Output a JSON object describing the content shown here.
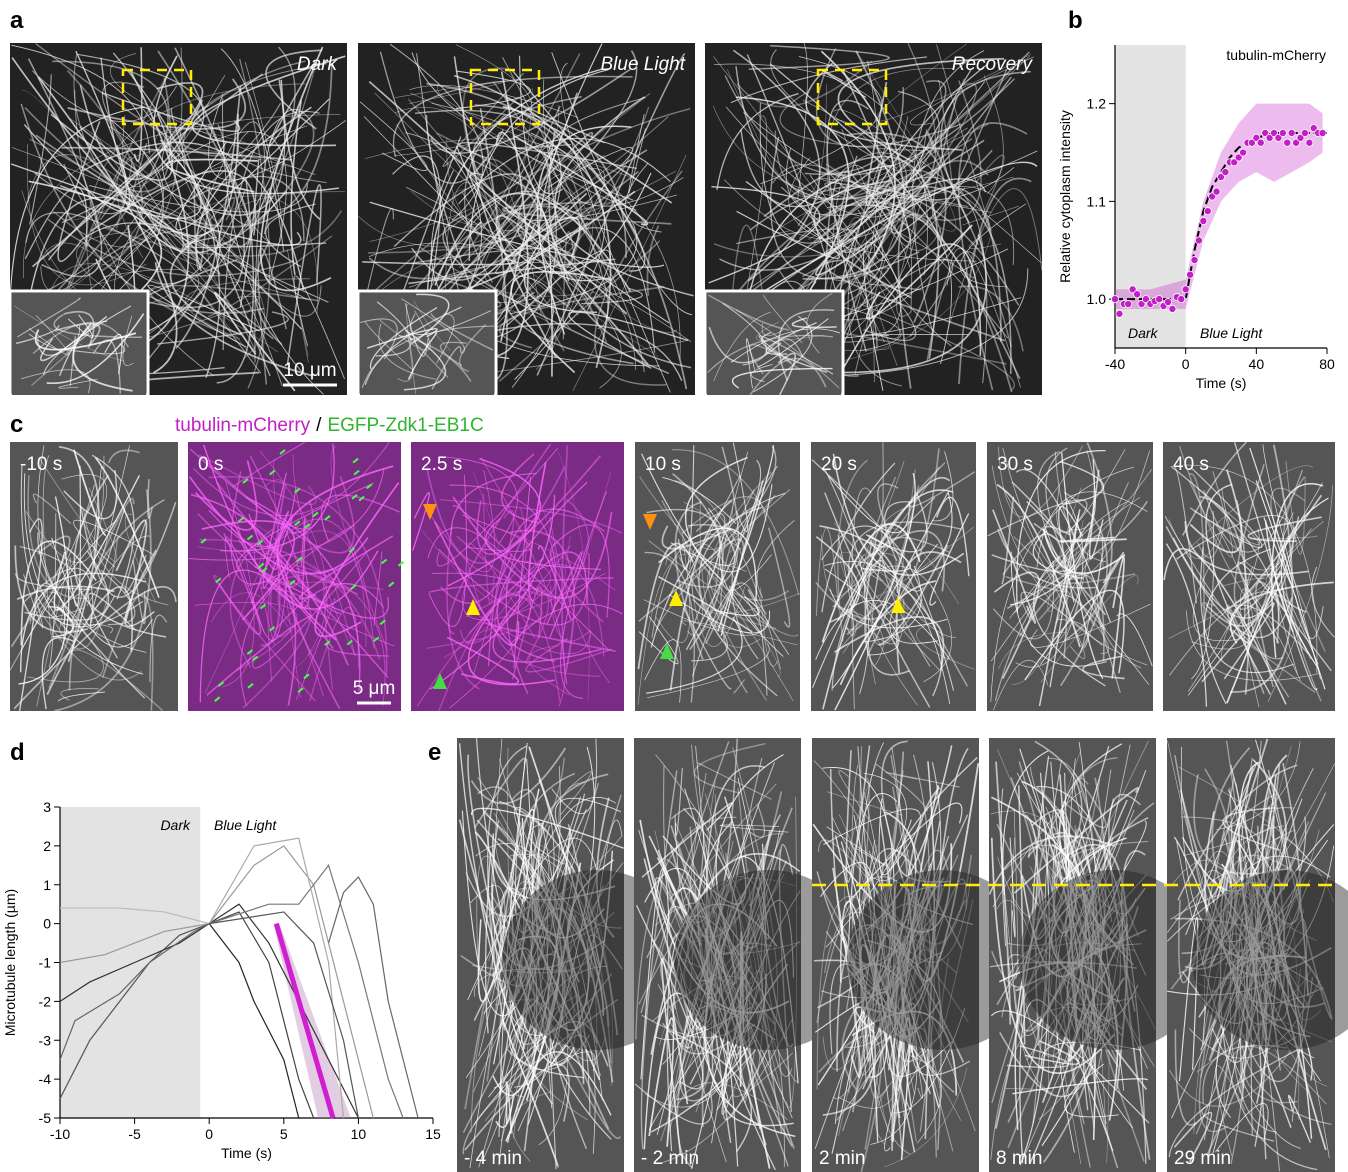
{
  "panel_labels": [
    "a",
    "b",
    "c",
    "d",
    "e"
  ],
  "panel_a": {
    "images": [
      "Dark",
      "Blue Light",
      "Recovery"
    ],
    "scale_bar": "10 μm"
  },
  "panel_c": {
    "title": [
      "tubulin-mCherry",
      "/",
      "EGFP-Zdk1-EB1C"
    ],
    "frames": [
      "-10 s",
      "0 s",
      "2.5 s",
      "10 s",
      "20 s",
      "30 s",
      "40 s"
    ],
    "scale_bar": "5 μm"
  },
  "panel_e": {
    "frames": [
      "- 4 min",
      "- 2 min",
      "2 min",
      "8 min",
      "29 min"
    ]
  },
  "chart_data": [
    {
      "type": "scatter",
      "x_label": "Time (s)",
      "y_label": "Relative cytoplasm intensity",
      "annotations": [
        "Dark",
        "Blue Light"
      ],
      "xlim": [
        -40,
        80
      ],
      "xticks": [
        -40,
        0,
        40,
        80
      ],
      "ylim": [
        0.95,
        1.26
      ],
      "yticks": [
        {
          "value": 1,
          "label": "1.0"
        },
        {
          "value": 1.1,
          "label": "1.1"
        },
        {
          "value": 1.2,
          "label": "1.2"
        }
      ],
      "shaded_x": [
        -40,
        0
      ],
      "series": [
        {
          "name": "tubulin-mCherry",
          "color": "#c21fc6",
          "x": [
            -40,
            -37.5,
            -35,
            -32.5,
            -30,
            -27.5,
            -25,
            -22.5,
            -20,
            -17.5,
            -15,
            -12.5,
            -10,
            -7.5,
            -5,
            -2.5,
            0,
            2.5,
            5,
            7.5,
            10,
            12.5,
            15,
            17.5,
            20,
            22.5,
            25,
            27.5,
            30,
            32.5,
            35,
            37.5,
            40,
            42.5,
            45,
            47.5,
            50,
            52.5,
            55,
            57.5,
            60,
            62.5,
            65,
            67.5,
            70,
            72.5,
            75,
            77.5
          ],
          "values": [
            1.0,
            0.985,
            0.995,
            0.995,
            1.01,
            1.005,
            0.995,
            1.0,
            0.995,
            0.998,
            1.0,
            0.993,
            0.997,
            0.99,
            1.002,
            1.0,
            1.01,
            1.025,
            1.04,
            1.06,
            1.08,
            1.09,
            1.105,
            1.11,
            1.125,
            1.13,
            1.14,
            1.14,
            1.145,
            1.15,
            1.16,
            1.16,
            1.165,
            1.16,
            1.17,
            1.165,
            1.17,
            1.165,
            1.17,
            1.16,
            1.17,
            1.16,
            1.165,
            1.17,
            1.16,
            1.175,
            1.17,
            1.17
          ]
        }
      ],
      "fit": {
        "color": "#000000",
        "x": [
          -40,
          -20,
          0,
          5,
          10,
          15,
          20,
          25,
          30,
          40,
          50,
          60,
          70,
          80
        ],
        "values": [
          1.0,
          1.0,
          1.0,
          1.05,
          1.09,
          1.115,
          1.13,
          1.145,
          1.155,
          1.165,
          1.17,
          1.17,
          1.17,
          1.17
        ]
      },
      "band": {
        "color": "#c21fc6",
        "x": [
          -40,
          -20,
          0,
          10,
          20,
          30,
          40,
          50,
          60,
          70,
          77.5
        ],
        "lower": [
          0.99,
          0.99,
          0.99,
          1.06,
          1.1,
          1.12,
          1.13,
          1.12,
          1.13,
          1.14,
          1.15
        ],
        "upper": [
          1.01,
          1.01,
          1.02,
          1.1,
          1.15,
          1.18,
          1.2,
          1.2,
          1.2,
          1.2,
          1.19
        ]
      }
    },
    {
      "type": "line",
      "x_label": "Time (s)",
      "y_label": "Microtubule length (µm)",
      "annotations": [
        "Dark",
        "Blue Light"
      ],
      "xlim": [
        -10,
        15
      ],
      "xticks": [
        -10,
        -5,
        0,
        5,
        10,
        15
      ],
      "ylim": [
        -5,
        3
      ],
      "yticks": [
        -5,
        -4,
        -3,
        -2,
        -1,
        0,
        1,
        2,
        3
      ],
      "shaded_x": [
        -10,
        -0.6
      ],
      "series": [
        {
          "color": "#555555",
          "x": [
            -10,
            -8,
            -6,
            -4,
            -2,
            0
          ],
          "values": [
            -4.5,
            -3,
            -2,
            -1,
            -0.3,
            0
          ]
        },
        {
          "color": "#999999",
          "x": [
            -10,
            -7,
            -5,
            -3,
            0
          ],
          "values": [
            -1,
            -0.8,
            -0.5,
            -0.2,
            0
          ]
        },
        {
          "color": "#333333",
          "x": [
            -10,
            -8,
            -5,
            -2,
            0
          ],
          "values": [
            -2,
            -1.5,
            -1,
            -0.5,
            0
          ]
        },
        {
          "color": "#bbbbbb",
          "x": [
            -10,
            -6,
            -3,
            0
          ],
          "values": [
            0.4,
            0.4,
            0.3,
            0
          ]
        },
        {
          "color": "#666666",
          "x": [
            -10,
            -9,
            -6,
            -4,
            -1,
            0
          ],
          "values": [
            -3.5,
            -2.5,
            -1.8,
            -1,
            -0.2,
            0
          ]
        },
        {
          "color": "#333333",
          "x": [
            0,
            2,
            4,
            6,
            8,
            10
          ],
          "values": [
            0,
            0.5,
            -0.5,
            -2,
            -3.5,
            -5
          ]
        },
        {
          "color": "#999999",
          "x": [
            0,
            3,
            5,
            7,
            9,
            11
          ],
          "values": [
            0,
            1.5,
            2,
            1,
            -2,
            -5
          ]
        },
        {
          "color": "#444444",
          "x": [
            0,
            2,
            4,
            5,
            6,
            7
          ],
          "values": [
            0,
            0.3,
            -1,
            -2.5,
            -4,
            -5
          ]
        },
        {
          "color": "#777777",
          "x": [
            0,
            4,
            6,
            8,
            10,
            12,
            13
          ],
          "values": [
            0,
            0.5,
            0.5,
            1.5,
            -1,
            -4,
            -5
          ]
        },
        {
          "color": "#222222",
          "x": [
            0,
            2,
            3,
            5,
            6
          ],
          "values": [
            0,
            -1,
            -2,
            -3.5,
            -5
          ]
        },
        {
          "color": "#aaaaaa",
          "x": [
            0,
            3,
            6,
            8,
            9
          ],
          "values": [
            0,
            2,
            2.2,
            -1,
            -5
          ]
        },
        {
          "color": "#555555",
          "x": [
            0,
            5,
            7,
            9,
            10
          ],
          "values": [
            0,
            0.3,
            -0.5,
            -3,
            -5
          ]
        },
        {
          "color": "#666666",
          "x": [
            8,
            9,
            10,
            11,
            12,
            14
          ],
          "values": [
            -0.5,
            0.8,
            1.2,
            0.5,
            -2,
            -5
          ]
        }
      ],
      "mean": {
        "color": "#d01fd0",
        "x": [
          4.5,
          8.3
        ],
        "values": [
          0,
          -5
        ]
      },
      "band": {
        "color": "#b070b0",
        "y": [
          0,
          -5
        ],
        "x_lower": [
          4.3,
          7.3
        ],
        "x_upper": [
          4.7,
          9.5
        ]
      }
    }
  ]
}
